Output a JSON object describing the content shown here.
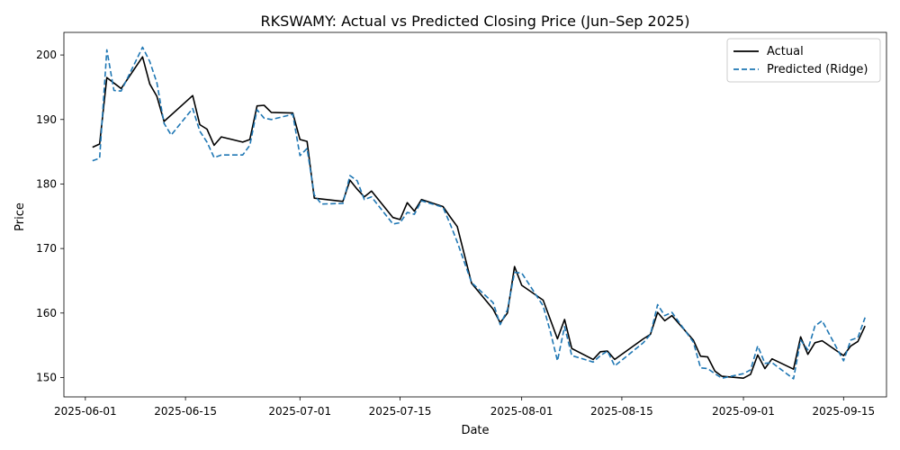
{
  "chart_data": {
    "type": "line",
    "title": "RKSWAMY: Actual vs Predicted Closing Price (Jun–Sep 2025)",
    "xlabel": "Date",
    "ylabel": "Price",
    "ylim": [
      147,
      203.5
    ],
    "xlim": [
      "2025-05-29",
      "2025-09-21"
    ],
    "x_ticks": [
      "2025-06-01",
      "2025-06-15",
      "2025-07-01",
      "2025-07-15",
      "2025-08-01",
      "2025-08-15",
      "2025-09-01",
      "2025-09-15"
    ],
    "y_ticks": [
      150,
      160,
      170,
      180,
      190,
      200
    ],
    "grid": false,
    "legend_position": "top-right",
    "series": [
      {
        "name": "Actual",
        "color": "#000000",
        "style": "solid",
        "points": [
          [
            "2025-06-02",
            185.7
          ],
          [
            "2025-06-03",
            186.2
          ],
          [
            "2025-06-04",
            196.5
          ],
          [
            "2025-06-06",
            194.8
          ],
          [
            "2025-06-09",
            199.7
          ],
          [
            "2025-06-10",
            195.5
          ],
          [
            "2025-06-11",
            193.6
          ],
          [
            "2025-06-12",
            189.7
          ],
          [
            "2025-06-16",
            193.7
          ],
          [
            "2025-06-17",
            189.2
          ],
          [
            "2025-06-18",
            188.5
          ],
          [
            "2025-06-19",
            186.0
          ],
          [
            "2025-06-20",
            187.3
          ],
          [
            "2025-06-23",
            186.5
          ],
          [
            "2025-06-24",
            186.9
          ],
          [
            "2025-06-25",
            192.1
          ],
          [
            "2025-06-26",
            192.2
          ],
          [
            "2025-06-27",
            191.1
          ],
          [
            "2025-06-30",
            191.0
          ],
          [
            "2025-07-01",
            186.9
          ],
          [
            "2025-07-02",
            186.6
          ],
          [
            "2025-07-03",
            177.8
          ],
          [
            "2025-07-07",
            177.3
          ],
          [
            "2025-07-08",
            180.6
          ],
          [
            "2025-07-09",
            179.2
          ],
          [
            "2025-07-10",
            178.0
          ],
          [
            "2025-07-11",
            178.9
          ],
          [
            "2025-07-14",
            174.8
          ],
          [
            "2025-07-15",
            174.5
          ],
          [
            "2025-07-16",
            177.1
          ],
          [
            "2025-07-17",
            175.8
          ],
          [
            "2025-07-18",
            177.6
          ],
          [
            "2025-07-21",
            176.5
          ],
          [
            "2025-07-22",
            174.9
          ],
          [
            "2025-07-23",
            173.4
          ],
          [
            "2025-07-25",
            164.6
          ],
          [
            "2025-07-28",
            160.6
          ],
          [
            "2025-07-29",
            158.5
          ],
          [
            "2025-07-30",
            160.0
          ],
          [
            "2025-07-31",
            167.2
          ],
          [
            "2025-08-01",
            164.3
          ],
          [
            "2025-08-04",
            162.0
          ],
          [
            "2025-08-06",
            156.0
          ],
          [
            "2025-08-07",
            159.0
          ],
          [
            "2025-08-08",
            154.5
          ],
          [
            "2025-08-11",
            152.8
          ],
          [
            "2025-08-12",
            154.0
          ],
          [
            "2025-08-13",
            154.1
          ],
          [
            "2025-08-14",
            152.8
          ],
          [
            "2025-08-18",
            156.0
          ],
          [
            "2025-08-19",
            156.7
          ],
          [
            "2025-08-20",
            160.1
          ],
          [
            "2025-08-21",
            158.8
          ],
          [
            "2025-08-22",
            159.6
          ],
          [
            "2025-08-25",
            155.8
          ],
          [
            "2025-08-26",
            153.3
          ],
          [
            "2025-08-27",
            153.2
          ],
          [
            "2025-08-28",
            151.0
          ],
          [
            "2025-08-29",
            150.2
          ],
          [
            "2025-09-01",
            149.9
          ],
          [
            "2025-09-02",
            150.5
          ],
          [
            "2025-09-03",
            153.5
          ],
          [
            "2025-09-04",
            151.4
          ],
          [
            "2025-09-05",
            152.9
          ],
          [
            "2025-09-08",
            151.3
          ],
          [
            "2025-09-09",
            156.3
          ],
          [
            "2025-09-10",
            153.6
          ],
          [
            "2025-09-11",
            155.4
          ],
          [
            "2025-09-12",
            155.7
          ],
          [
            "2025-09-15",
            153.4
          ],
          [
            "2025-09-16",
            154.9
          ],
          [
            "2025-09-17",
            155.6
          ],
          [
            "2025-09-18",
            158.0
          ]
        ]
      },
      {
        "name": "Predicted (Ridge)",
        "color": "#1f77b4",
        "style": "dashed",
        "points": [
          [
            "2025-06-02",
            183.6
          ],
          [
            "2025-06-03",
            184.0
          ],
          [
            "2025-06-04",
            200.8
          ],
          [
            "2025-06-05",
            194.5
          ],
          [
            "2025-06-06",
            194.4
          ],
          [
            "2025-06-09",
            201.2
          ],
          [
            "2025-06-10",
            199.0
          ],
          [
            "2025-06-11",
            195.7
          ],
          [
            "2025-06-12",
            189.4
          ],
          [
            "2025-06-13",
            187.6
          ],
          [
            "2025-06-16",
            191.7
          ],
          [
            "2025-06-17",
            188.2
          ],
          [
            "2025-06-18",
            186.5
          ],
          [
            "2025-06-19",
            184.1
          ],
          [
            "2025-06-20",
            184.5
          ],
          [
            "2025-06-23",
            184.5
          ],
          [
            "2025-06-24",
            186.0
          ],
          [
            "2025-06-25",
            191.5
          ],
          [
            "2025-06-26",
            190.2
          ],
          [
            "2025-06-27",
            190.0
          ],
          [
            "2025-06-30",
            190.8
          ],
          [
            "2025-07-01",
            184.4
          ],
          [
            "2025-07-02",
            185.5
          ],
          [
            "2025-07-03",
            178.3
          ],
          [
            "2025-07-04",
            176.9
          ],
          [
            "2025-07-07",
            177.0
          ],
          [
            "2025-07-08",
            181.3
          ],
          [
            "2025-07-09",
            180.5
          ],
          [
            "2025-07-10",
            177.6
          ],
          [
            "2025-07-11",
            178.0
          ],
          [
            "2025-07-14",
            173.8
          ],
          [
            "2025-07-15",
            174.0
          ],
          [
            "2025-07-16",
            175.6
          ],
          [
            "2025-07-17",
            175.3
          ],
          [
            "2025-07-18",
            177.4
          ],
          [
            "2025-07-21",
            176.4
          ],
          [
            "2025-07-22",
            173.8
          ],
          [
            "2025-07-23",
            171.0
          ],
          [
            "2025-07-25",
            164.7
          ],
          [
            "2025-07-28",
            161.6
          ],
          [
            "2025-07-29",
            158.2
          ],
          [
            "2025-07-30",
            160.5
          ],
          [
            "2025-07-31",
            166.3
          ],
          [
            "2025-08-01",
            166.2
          ],
          [
            "2025-08-04",
            161.1
          ],
          [
            "2025-08-05",
            157.1
          ],
          [
            "2025-08-06",
            152.6
          ],
          [
            "2025-08-07",
            157.9
          ],
          [
            "2025-08-08",
            153.4
          ],
          [
            "2025-08-11",
            152.4
          ],
          [
            "2025-08-12",
            153.4
          ],
          [
            "2025-08-13",
            154.1
          ],
          [
            "2025-08-14",
            151.8
          ],
          [
            "2025-08-18",
            155.4
          ],
          [
            "2025-08-19",
            156.7
          ],
          [
            "2025-08-20",
            161.3
          ],
          [
            "2025-08-21",
            159.6
          ],
          [
            "2025-08-22",
            160.1
          ],
          [
            "2025-08-25",
            155.5
          ],
          [
            "2025-08-26",
            151.5
          ],
          [
            "2025-08-27",
            151.4
          ],
          [
            "2025-08-28",
            150.6
          ],
          [
            "2025-08-29",
            149.9
          ],
          [
            "2025-09-01",
            150.6
          ],
          [
            "2025-09-02",
            151.2
          ],
          [
            "2025-09-03",
            154.9
          ],
          [
            "2025-09-04",
            152.2
          ],
          [
            "2025-09-05",
            152.3
          ],
          [
            "2025-09-08",
            149.8
          ],
          [
            "2025-09-09",
            155.8
          ],
          [
            "2025-09-10",
            154.3
          ],
          [
            "2025-09-11",
            158.0
          ],
          [
            "2025-09-12",
            158.8
          ],
          [
            "2025-09-15",
            152.6
          ],
          [
            "2025-09-16",
            155.8
          ],
          [
            "2025-09-17",
            156.2
          ],
          [
            "2025-09-18",
            159.3
          ]
        ]
      }
    ]
  }
}
